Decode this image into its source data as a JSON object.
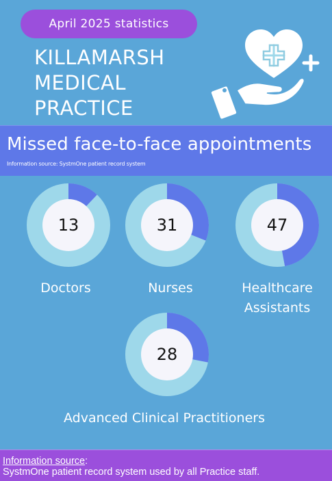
{
  "header": {
    "month_label": "April 2025 statistics",
    "practice_name_lines": [
      "KILLAMARSH",
      "MEDICAL",
      "PRACTICE"
    ]
  },
  "section": {
    "title": "Missed face-to-face appointments",
    "source_note": "Information source: SystmOne patient record system"
  },
  "staff_groups": [
    {
      "label_lines": [
        "Doctors"
      ],
      "missed": 13,
      "value_text": "13",
      "dark_fraction": 0.12
    },
    {
      "label_lines": [
        "Nurses"
      ],
      "missed": 31,
      "value_text": "31",
      "dark_fraction": 0.31
    },
    {
      "label_lines": [
        "Healthcare",
        "Assistants"
      ],
      "missed": 47,
      "value_text": "47",
      "dark_fraction": 0.47
    },
    {
      "label_lines": [
        "Advanced Clinical Practitioners"
      ],
      "missed": 28,
      "value_text": "28",
      "dark_fraction": 0.28
    }
  ],
  "footer": {
    "heading": "Information source",
    "colon": ":",
    "text": "SystmOne patient record system used by all Practice staff."
  },
  "colors": {
    "background": "#5aa6d8",
    "pill": "#9b4fdc",
    "band": "#5e78e8",
    "donut_dark": "#5e78e8",
    "donut_light": "#9ed8ea",
    "donut_center": "#f5f5fb"
  },
  "icons": [
    "heart-icon",
    "plus-icon",
    "hand-icon"
  ]
}
